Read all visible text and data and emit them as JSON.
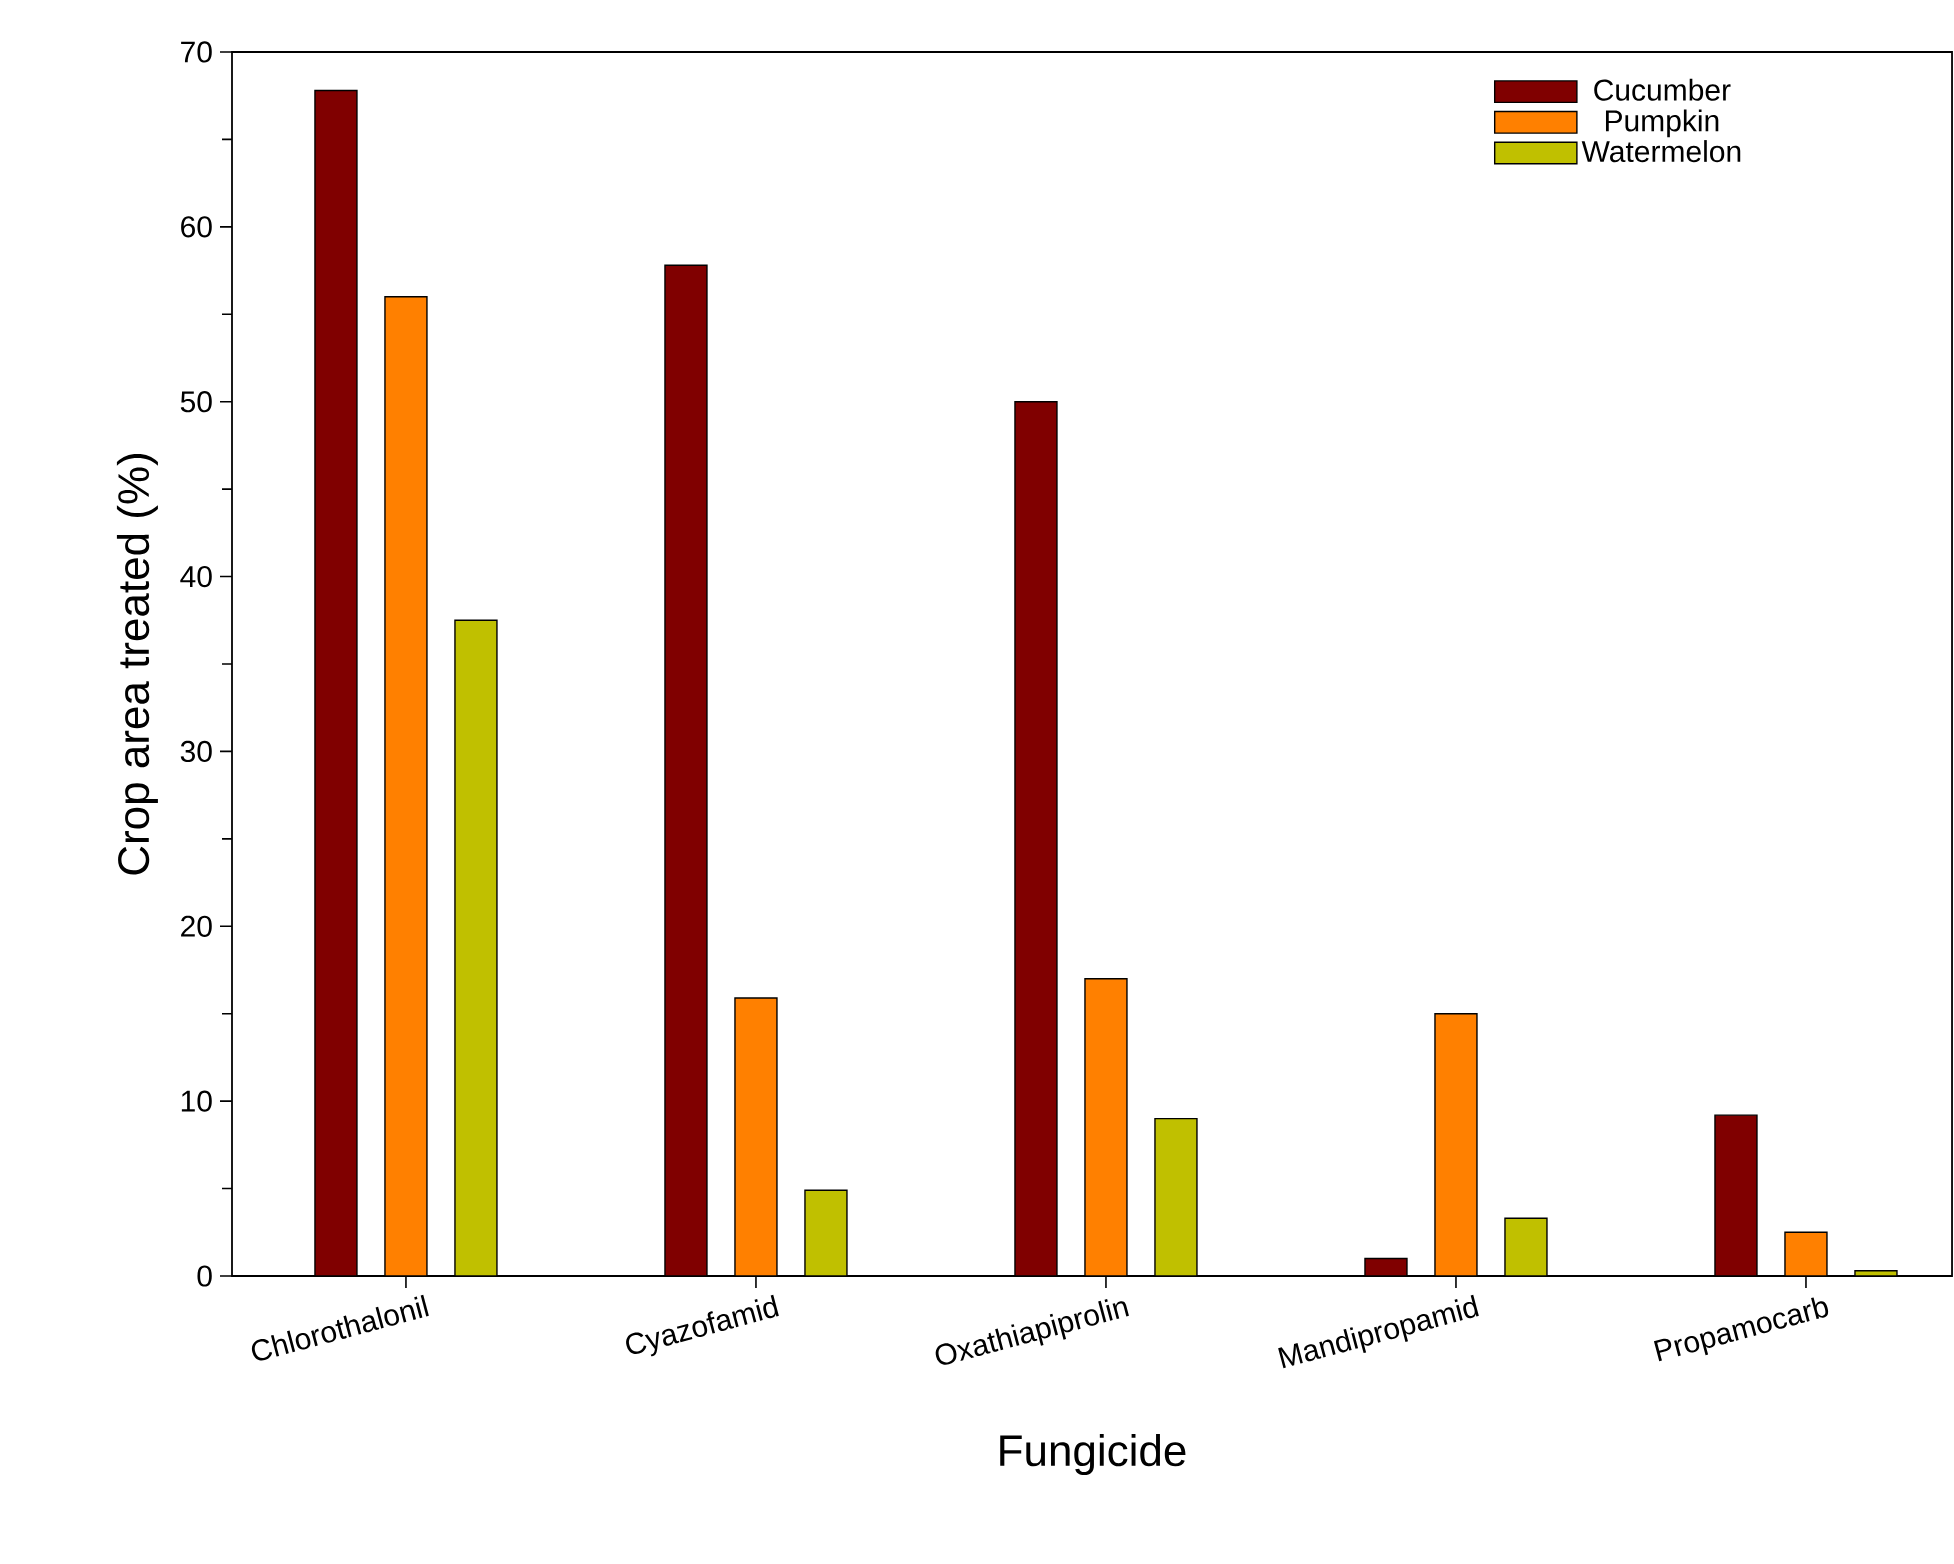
{
  "chart_data": {
    "type": "bar",
    "xlabel": "Fungicide",
    "ylabel": "Crop area treated (%)",
    "categories": [
      "Chlorothalonil",
      "Cyazofamid",
      "Oxathiapiprolin",
      "Mandipropamid",
      "Propamocarb"
    ],
    "series": [
      {
        "name": "Cucumber",
        "color": "#800000",
        "values": [
          67.8,
          57.8,
          50.0,
          1.0,
          9.2
        ]
      },
      {
        "name": "Pumpkin",
        "color": "#ff8000",
        "values": [
          56.0,
          15.9,
          17.0,
          15.0,
          2.5
        ]
      },
      {
        "name": "Watermelon",
        "color": "#c0c000",
        "values": [
          37.5,
          4.9,
          9.0,
          3.3,
          0.3
        ]
      }
    ],
    "ylim": [
      0,
      70
    ],
    "yticks": [
      0,
      10,
      20,
      30,
      40,
      50,
      60,
      70
    ],
    "legend": "top right"
  }
}
